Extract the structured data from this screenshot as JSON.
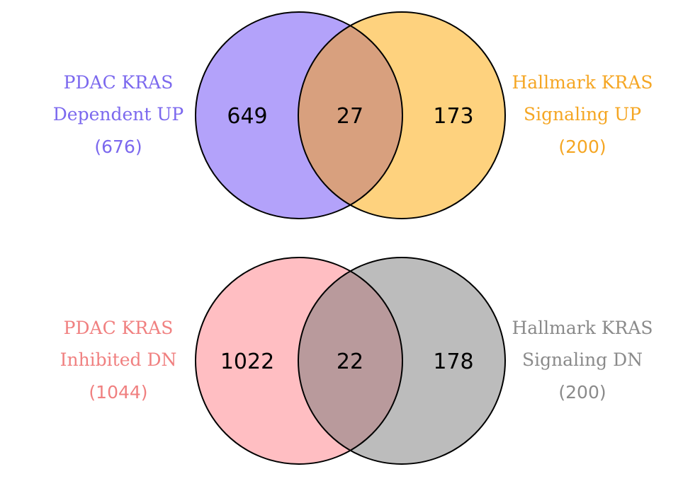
{
  "venns": [
    {
      "left_set": {
        "name_line1": "PDAC KRAS",
        "name_line2": "Dependent UP",
        "total": "(676)",
        "color": "#9b86fb",
        "label_color": "#7b68ee"
      },
      "right_set": {
        "name_line1": "Hallmark KRAS",
        "name_line2": "Signaling UP",
        "total": "(200)",
        "color": "#fdbf4f",
        "label_color": "#f5a623"
      },
      "overlap_color": "#d8a07e",
      "left_only": "649",
      "overlap": "27",
      "right_only": "173"
    },
    {
      "left_set": {
        "name_line1": "PDAC KRAS",
        "name_line2": "Inhibited DN",
        "total": "(1044)",
        "color": "#ffb6bb",
        "label_color": "#f08080"
      },
      "right_set": {
        "name_line1": "Hallmark KRAS",
        "name_line2": "Signaling DN",
        "total": "(200)",
        "color": "#b5b5b5",
        "label_color": "#8a8a8a"
      },
      "overlap_color": "#b99a9c",
      "left_only": "1022",
      "overlap": "22",
      "right_only": "178"
    }
  ]
}
